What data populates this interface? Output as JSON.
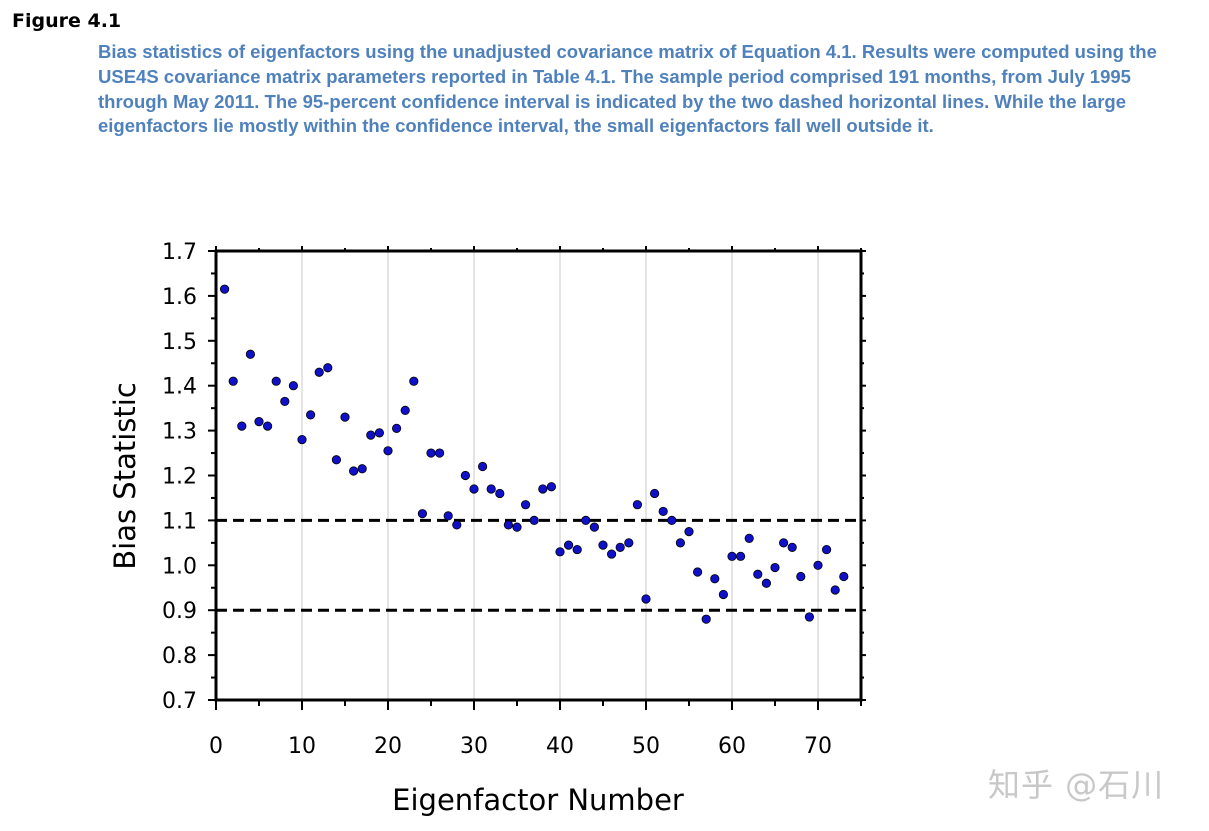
{
  "figure": {
    "label": "Figure 4.1",
    "caption": "Bias statistics of eigenfactors using the unadjusted covariance matrix of Equation 4.1. Results were computed using the USE4S covariance matrix parameters reported in Table 4.1. The sample period comprised 191 months, from July 1995 through May 2011. The 95-percent confidence interval is indicated by the two dashed horizontal lines. While the large eigenfactors lie mostly within the confidence interval, the small eigenfactors fall well outside it."
  },
  "watermark": "知乎 @石川",
  "colors": {
    "point": "#1010c8",
    "caption": "#4f81bd",
    "grid": "#c8c8c8"
  },
  "chart_data": {
    "type": "scatter",
    "title": "",
    "xlabel": "Eigenfactor Number",
    "ylabel": "Bias Statistic",
    "xlim": [
      0,
      75
    ],
    "ylim": [
      0.7,
      1.7
    ],
    "x_ticks": [
      0,
      10,
      20,
      30,
      40,
      50,
      60,
      70
    ],
    "y_ticks": [
      0.7,
      0.8,
      0.9,
      1.0,
      1.1,
      1.2,
      1.3,
      1.4,
      1.5,
      1.6,
      1.7
    ],
    "grid": "vertical",
    "confidence_interval": [
      0.9,
      1.1
    ],
    "series": [
      {
        "name": "Bias statistics",
        "x": [
          1,
          2,
          3,
          4,
          5,
          6,
          7,
          8,
          9,
          10,
          11,
          12,
          13,
          14,
          15,
          16,
          17,
          18,
          19,
          20,
          21,
          22,
          23,
          24,
          25,
          26,
          27,
          28,
          29,
          30,
          31,
          32,
          33,
          34,
          35,
          36,
          37,
          38,
          39,
          40,
          41,
          42,
          43,
          44,
          45,
          46,
          47,
          48,
          49,
          50,
          51,
          52,
          53,
          54,
          55,
          56,
          57,
          58,
          59,
          60,
          61,
          62,
          63,
          64,
          65,
          66,
          67,
          68,
          69,
          70,
          71,
          72,
          73
        ],
        "y": [
          1.615,
          1.41,
          1.31,
          1.47,
          1.32,
          1.31,
          1.41,
          1.365,
          1.4,
          1.28,
          1.335,
          1.43,
          1.44,
          1.235,
          1.33,
          1.21,
          1.215,
          1.29,
          1.295,
          1.255,
          1.305,
          1.345,
          1.41,
          1.115,
          1.25,
          1.25,
          1.11,
          1.09,
          1.2,
          1.17,
          1.22,
          1.17,
          1.16,
          1.09,
          1.085,
          1.135,
          1.1,
          1.17,
          1.175,
          1.03,
          1.045,
          1.035,
          1.1,
          1.085,
          1.045,
          1.025,
          1.04,
          1.05,
          1.135,
          0.925,
          1.16,
          1.12,
          1.1,
          1.05,
          1.075,
          0.985,
          0.88,
          0.97,
          0.935,
          1.02,
          1.02,
          1.06,
          0.98,
          0.96,
          0.995,
          1.05,
          1.04,
          0.975,
          0.885,
          1.0,
          1.035,
          0.945,
          0.975
        ]
      }
    ]
  }
}
